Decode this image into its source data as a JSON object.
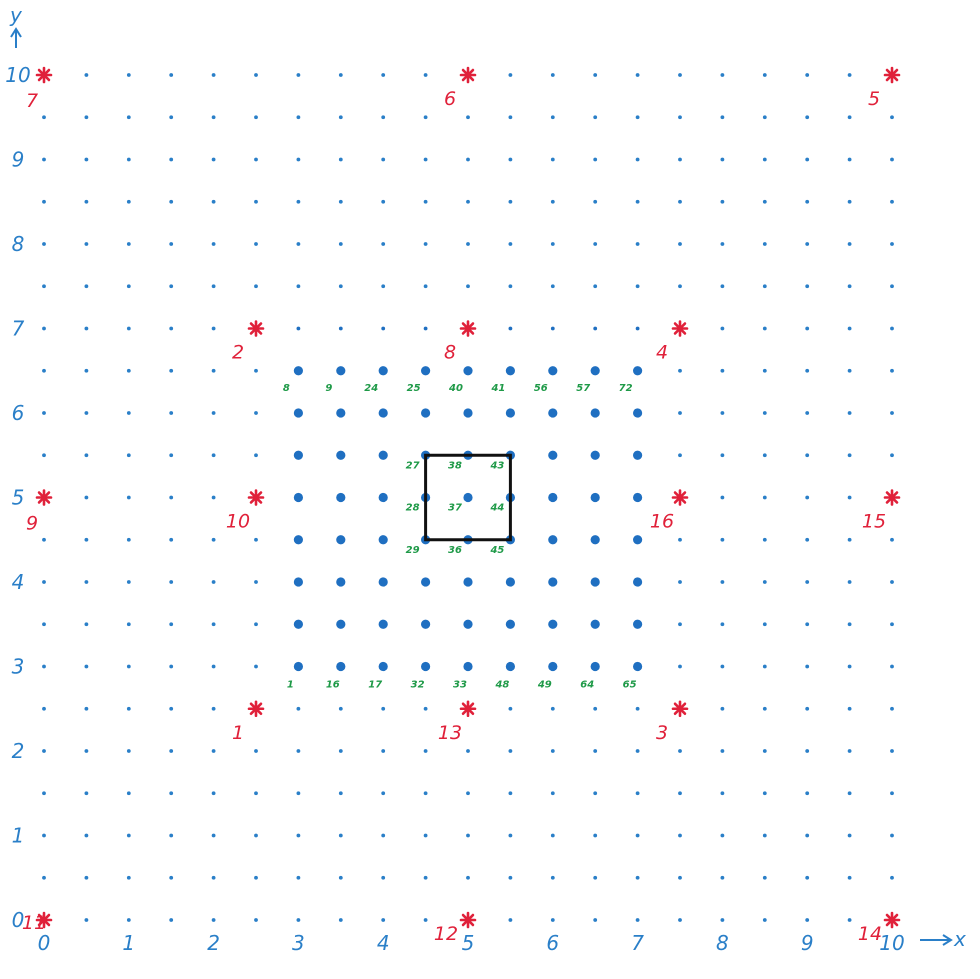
{
  "axes": {
    "x_label": "x",
    "y_label": "y",
    "x_ticks": [
      "0",
      "1",
      "2",
      "3",
      "4",
      "5",
      "6",
      "7",
      "8",
      "9",
      "10"
    ],
    "y_ticks": [
      "0",
      "1",
      "2",
      "3",
      "4",
      "5",
      "6",
      "7",
      "8",
      "9",
      "10"
    ],
    "xlim": [
      0,
      10
    ],
    "ylim": [
      0,
      10
    ]
  },
  "colors": {
    "axis": "#2a7fc8",
    "dot": "#2a7fc8",
    "fine_node": "#1f6fc1",
    "coarse_point": "#e0213a",
    "node_label": "#1f9a48",
    "cell": "#111111"
  },
  "background_grid": {
    "step": 0.5,
    "range": [
      0,
      10
    ]
  },
  "fine_grid": {
    "step": 0.5,
    "range": [
      3,
      7
    ]
  },
  "coarse_points": [
    {
      "label": "1",
      "x": 2.5,
      "y": 2.5
    },
    {
      "label": "2",
      "x": 2.5,
      "y": 7
    },
    {
      "label": "3",
      "x": 7.5,
      "y": 2.5
    },
    {
      "label": "4",
      "x": 7.5,
      "y": 7
    },
    {
      "label": "5",
      "x": 10,
      "y": 10
    },
    {
      "label": "6",
      "x": 5,
      "y": 10
    },
    {
      "label": "7",
      "x": 0,
      "y": 10
    },
    {
      "label": "8",
      "x": 5,
      "y": 7
    },
    {
      "label": "9",
      "x": 0,
      "y": 5
    },
    {
      "label": "10",
      "x": 2.5,
      "y": 5
    },
    {
      "label": "11",
      "x": 0,
      "y": 0
    },
    {
      "label": "12",
      "x": 5,
      "y": 0
    },
    {
      "label": "13",
      "x": 5,
      "y": 2.5
    },
    {
      "label": "14",
      "x": 10,
      "y": 0
    },
    {
      "label": "15",
      "x": 10,
      "y": 5
    },
    {
      "label": "16",
      "x": 7.5,
      "y": 5
    }
  ],
  "node_labels": [
    {
      "label": "8",
      "x": 3,
      "y": 6.5
    },
    {
      "label": "9",
      "x": 3.5,
      "y": 6.5
    },
    {
      "label": "24",
      "x": 4,
      "y": 6.5
    },
    {
      "label": "25",
      "x": 4.5,
      "y": 6.5
    },
    {
      "label": "40",
      "x": 5,
      "y": 6.5
    },
    {
      "label": "41",
      "x": 5.5,
      "y": 6.5
    },
    {
      "label": "56",
      "x": 6,
      "y": 6.5
    },
    {
      "label": "57",
      "x": 6.5,
      "y": 6.5
    },
    {
      "label": "72",
      "x": 7,
      "y": 6.5
    },
    {
      "label": "27",
      "x": 4.5,
      "y": 5.5
    },
    {
      "label": "38",
      "x": 5,
      "y": 5.5
    },
    {
      "label": "43",
      "x": 5.5,
      "y": 5.5
    },
    {
      "label": "28",
      "x": 4.5,
      "y": 5
    },
    {
      "label": "37",
      "x": 5,
      "y": 5
    },
    {
      "label": "44",
      "x": 5.5,
      "y": 5
    },
    {
      "label": "29",
      "x": 4.5,
      "y": 4.5
    },
    {
      "label": "36",
      "x": 5,
      "y": 4.5
    },
    {
      "label": "45",
      "x": 5.5,
      "y": 4.5
    },
    {
      "label": "1",
      "x": 3,
      "y": 3
    },
    {
      "label": "16",
      "x": 3.5,
      "y": 3
    },
    {
      "label": "17",
      "x": 4,
      "y": 3
    },
    {
      "label": "32",
      "x": 4.5,
      "y": 3
    },
    {
      "label": "33",
      "x": 5,
      "y": 3
    },
    {
      "label": "48",
      "x": 5.5,
      "y": 3
    },
    {
      "label": "49",
      "x": 6,
      "y": 3
    },
    {
      "label": "64",
      "x": 6.5,
      "y": 3
    },
    {
      "label": "65",
      "x": 7,
      "y": 3
    }
  ],
  "highlight_cell": {
    "x0": 4.5,
    "y0": 4.5,
    "x1": 5.5,
    "y1": 5.5
  }
}
